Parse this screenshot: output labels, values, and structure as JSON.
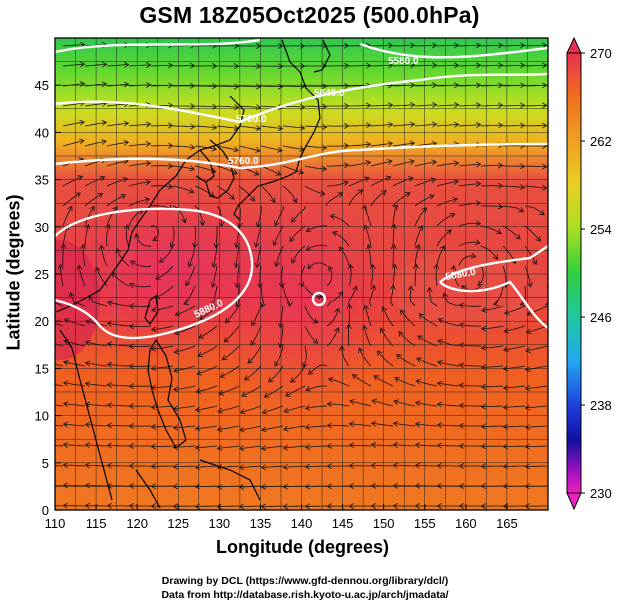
{
  "title": "GSM 18Z05Oct2025 (500.0hPa)",
  "xlabel": "Longitude (degrees)",
  "ylabel": "Latitude  (degrees)",
  "credits": [
    "Drawing by DCL (https://www.gfd-dennou.org/library/dcl/)",
    "Data from http://database.rish.kyoto-u.ac.jp/arch/jmadata/"
  ],
  "x_axis": {
    "range": [
      110,
      170
    ],
    "ticks": [
      "110",
      "115",
      "120",
      "125",
      "130",
      "135",
      "140",
      "145",
      "150",
      "155",
      "160",
      "165"
    ]
  },
  "y_axis": {
    "range": [
      0,
      50
    ],
    "ticks": [
      "0",
      "5",
      "10",
      "15",
      "20",
      "25",
      "30",
      "35",
      "40",
      "45"
    ]
  },
  "colorbar": {
    "range": [
      230,
      270
    ],
    "labels": [
      "270",
      "262",
      "254",
      "246",
      "238",
      "230"
    ],
    "colors": [
      "#e83050",
      "#f07020",
      "#f0a020",
      "#e8d020",
      "#a8e020",
      "#30d040",
      "#20c8a0",
      "#20a8f0",
      "#2040e0",
      "#1010a0",
      "#a010c0",
      "#f020c0"
    ]
  },
  "contour_labels": [
    "5880.0",
    "5880.0",
    "5880.0",
    "5760.0",
    "5700.0",
    "5640.0",
    "5580.0"
  ],
  "features": {
    "wind": "streamlines",
    "grid": true,
    "coastlines": true,
    "cyclone_center": {
      "lon": 142,
      "lat": 24.5
    }
  }
}
